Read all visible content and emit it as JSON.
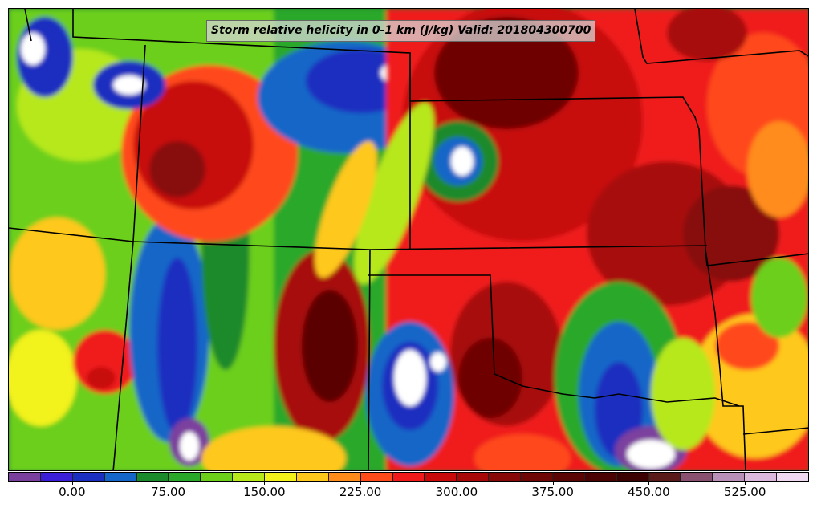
{
  "title": "Storm relative helicity in 0-1 km (J/kg) Valid: 201804300700",
  "colorbar": {
    "colors": [
      "#7b3f9e",
      "#3b1fd8",
      "#1a2ec0",
      "#1466c8",
      "#1a8a2a",
      "#2aa82a",
      "#6ccf1a",
      "#b6e81a",
      "#f2f21a",
      "#ffc81a",
      "#ff8c1a",
      "#ff4a1a",
      "#f01a1a",
      "#c80a0a",
      "#a80808",
      "#880808",
      "#6e0606",
      "#5a0404",
      "#4a0202",
      "#3c0202",
      "#5a1a1a",
      "#8a5070",
      "#b890b8",
      "#dcb8dc",
      "#f0d8f0"
    ],
    "tick_labels": [
      "0.00",
      "75.00",
      "150.00",
      "225.00",
      "300.00",
      "375.00",
      "450.00",
      "525.00"
    ]
  },
  "map": {
    "description_colors": {
      "low": "#1a2ec0",
      "mid": "#f2f21a",
      "high": "#c80a0a",
      "very_high": "#5a0404",
      "extreme": "#ffffff"
    }
  }
}
